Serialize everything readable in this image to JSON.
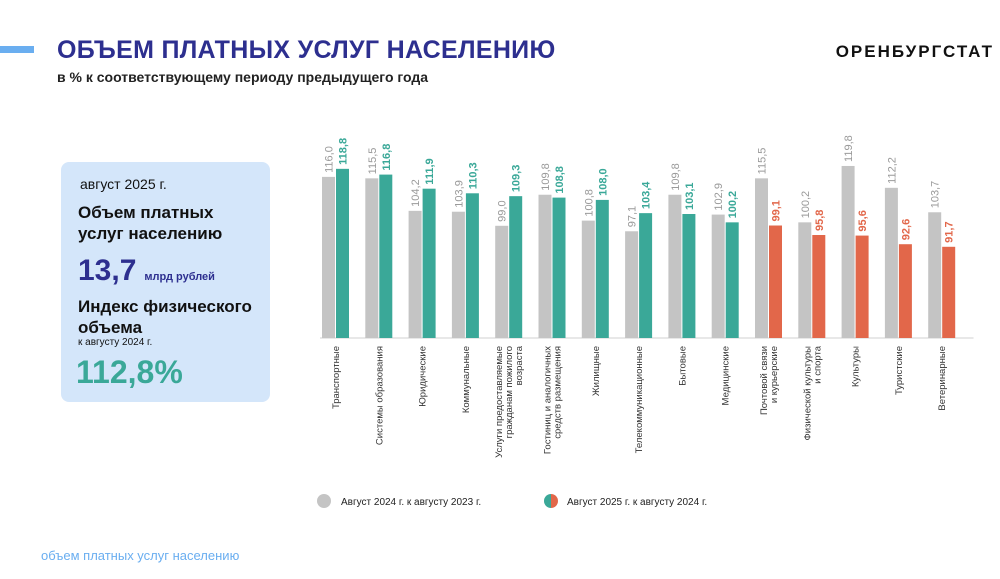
{
  "header": {
    "title": "ОБЪЕМ ПЛАТНЫХ УСЛУГ НАСЕЛЕНИЮ",
    "subtitle": "в % к соответствующему периоду предыдущего года",
    "org": "ОРЕНБУРГСТАТ"
  },
  "card": {
    "period": "август 2025 г.",
    "metric1": "Объем платных услуг населению",
    "value": "13,7",
    "unit": "млрд рублей",
    "metric2": "Индекс физического объема",
    "note": "к августу 2024 г.",
    "index": "112,8%"
  },
  "footer": "объем платных услуг населению",
  "colors": {
    "prev": "#c4c4c4",
    "growth": "#3aa898",
    "decline": "#e2674a",
    "title": "#2d2f8f"
  },
  "chart_data": {
    "type": "bar",
    "categories": [
      "Транспортные",
      "Системы образования",
      "Юридические",
      "Коммунальные",
      "Услуги предоставляемые гражданам пожилого возраста",
      "Гостиниц и аналогичных средств размещения",
      "Жилищные",
      "Телекоммуникационные",
      "Бытовые",
      "Медицинские",
      "Почтовой связи и курьерские",
      "Физической культуры и спорта",
      "Культуры",
      "Туристские",
      "Ветеринарные"
    ],
    "category_lines": [
      [
        "Транспортные"
      ],
      [
        "Системы образования"
      ],
      [
        "Юридические"
      ],
      [
        "Коммунальные"
      ],
      [
        "Услуги предоставляемые",
        "гражданам пожилого",
        "возраста"
      ],
      [
        "Гостиниц и аналогичных",
        "средств размещения"
      ],
      [
        "Жилищные"
      ],
      [
        "Телекоммуникационные"
      ],
      [
        "Бытовые"
      ],
      [
        "Медицинские"
      ],
      [
        "Почтовой связи",
        "и курьерские"
      ],
      [
        "Физической культуры",
        "и спорта"
      ],
      [
        "Культуры"
      ],
      [
        "Туристские"
      ],
      [
        "Ветеринарные"
      ]
    ],
    "series": [
      {
        "name": "Август 2024 г. к августу 2023 г.",
        "values": [
          116.0,
          115.5,
          104.2,
          103.9,
          99.0,
          109.8,
          100.8,
          97.1,
          109.8,
          102.9,
          115.5,
          100.2,
          119.8,
          112.2,
          103.7
        ],
        "labels": [
          "116,0",
          "115,5",
          "104,2",
          "103,9",
          "99,0",
          "109,8",
          "100,8",
          "97,1",
          "109,8",
          "102,9",
          "115,5",
          "100,2",
          "119,8",
          "112,2",
          "103,7"
        ]
      },
      {
        "name": "Август 2025 г. к августу 2024 г.",
        "values": [
          118.8,
          116.8,
          111.9,
          110.3,
          109.3,
          108.8,
          108.0,
          103.4,
          103.1,
          100.2,
          99.1,
          95.8,
          95.6,
          92.6,
          91.7
        ],
        "labels": [
          "118,8",
          "116,8",
          "111,9",
          "110,3",
          "109,3",
          "108,8",
          "108,0",
          "103,4",
          "103,1",
          "100,2",
          "99,1",
          "95,8",
          "95,6",
          "92,6",
          "91,7"
        ]
      }
    ],
    "ylim": [
      60,
      125
    ]
  }
}
